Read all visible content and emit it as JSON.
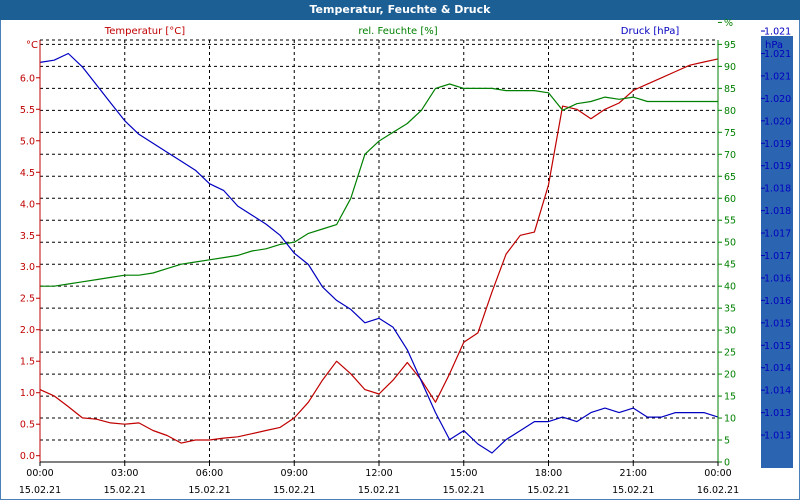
{
  "title": "Temperatur, Feuchte & Druck",
  "chart_data": {
    "type": "line",
    "title": "Temperatur, Feuchte & Druck",
    "legend": {
      "temperature": "Temperatur [°C]",
      "humidity": "rel. Feuchte [%]",
      "pressure": "Druck [hPa]"
    },
    "colors": {
      "temperature": "#c00000",
      "humidity": "#008000",
      "pressure": "#0000c0",
      "grid": "#000000"
    },
    "axes": {
      "left": {
        "unit": "°C",
        "ylim": [
          -0.1,
          6.6
        ],
        "ticks": [
          "0.0",
          "0.5",
          "1.0",
          "1.5",
          "2.0",
          "2.5",
          "3.0",
          "3.5",
          "4.0",
          "4.5",
          "5.0",
          "5.5",
          "6.0"
        ]
      },
      "right": {
        "unit": "%",
        "ylim": [
          0,
          96
        ],
        "ticks": [
          "0",
          "5",
          "10",
          "15",
          "20",
          "25",
          "30",
          "35",
          "40",
          "45",
          "50",
          "55",
          "60",
          "65",
          "70",
          "75",
          "80",
          "85",
          "90",
          "95",
          "%"
        ]
      },
      "pressure": {
        "unit": "hPa",
        "ylim": [
          1012.4,
          1021.8
        ],
        "ticks": [
          "1.013",
          "1.013",
          "1.014",
          "1.014",
          "1.015",
          "1.015",
          "1.016",
          "1.016",
          "1.017",
          "1.017",
          "1.018",
          "1.018",
          "1.019",
          "1.019",
          "1.020",
          "1.020",
          "1.021",
          "1.021",
          "1.021"
        ]
      },
      "x": {
        "time_ticks": [
          "00:00",
          "03:00",
          "06:00",
          "09:00",
          "12:00",
          "15:00",
          "18:00",
          "21:00",
          "00:00"
        ],
        "date_ticks": [
          "15.02.21",
          "15.02.21",
          "15.02.21",
          "15.02.21",
          "15.02.21",
          "15.02.21",
          "15.02.21",
          "15.02.21",
          "16.02.21"
        ],
        "xlim": [
          0,
          24
        ]
      }
    },
    "series": [
      {
        "key": "temperature",
        "name": "Temperatur [°C]",
        "x": [
          0,
          0.5,
          1,
          1.5,
          2,
          2.5,
          3,
          3.5,
          4,
          4.5,
          5,
          5.5,
          6,
          6.5,
          7,
          7.5,
          8,
          8.5,
          9,
          9.5,
          10,
          10.5,
          11,
          11.5,
          12,
          12.5,
          13,
          13.5,
          14,
          14.5,
          15,
          15.5,
          16,
          16.5,
          17,
          17.5,
          18,
          18.5,
          19,
          19.5,
          20,
          20.5,
          21,
          21.5,
          22,
          22.5,
          23,
          23.5,
          24
        ],
        "values": [
          1.05,
          0.95,
          0.78,
          0.6,
          0.58,
          0.52,
          0.5,
          0.52,
          0.4,
          0.32,
          0.2,
          0.25,
          0.25,
          0.28,
          0.3,
          0.35,
          0.4,
          0.45,
          0.6,
          0.85,
          1.2,
          1.5,
          1.3,
          1.05,
          0.98,
          1.2,
          1.48,
          1.2,
          0.85,
          1.3,
          1.8,
          1.95,
          2.6,
          3.2,
          3.5,
          3.55,
          4.3,
          5.55,
          5.5,
          5.35,
          5.5,
          5.6,
          5.8,
          5.9,
          6.0,
          6.1,
          6.2,
          6.25,
          6.3
        ]
      },
      {
        "key": "humidity",
        "name": "rel. Feuchte [%]",
        "x": [
          0,
          0.5,
          1,
          1.5,
          2,
          2.5,
          3,
          3.5,
          4,
          4.5,
          5,
          5.5,
          6,
          6.5,
          7,
          7.5,
          8,
          8.5,
          9,
          9.5,
          10,
          10.5,
          11,
          11.5,
          12,
          12.5,
          13,
          13.5,
          14,
          14.5,
          15,
          15.5,
          16,
          16.5,
          17,
          17.5,
          18,
          18.5,
          19,
          19.5,
          20,
          20.5,
          21,
          21.5,
          22,
          22.5,
          23,
          23.5,
          24
        ],
        "values": [
          40,
          40,
          40.5,
          41,
          41.5,
          42,
          42.5,
          42.5,
          43,
          44,
          45,
          45.5,
          46,
          46.5,
          47,
          48,
          48.5,
          49.5,
          50,
          52,
          53,
          54,
          60,
          70,
          73,
          75,
          77,
          80,
          85,
          86,
          85,
          85,
          85,
          84.5,
          84.5,
          84.5,
          84,
          80,
          81.5,
          82,
          83,
          82.5,
          83,
          82,
          82,
          82,
          82,
          82,
          82
        ]
      },
      {
        "key": "pressure",
        "name": "Druck [hPa]",
        "x": [
          0,
          0.5,
          1,
          1.5,
          2,
          2.5,
          3,
          3.5,
          4,
          4.5,
          5,
          5.5,
          6,
          6.5,
          7,
          7.5,
          8,
          8.5,
          9,
          9.5,
          10,
          10.5,
          11,
          11.5,
          12,
          12.5,
          13,
          13.5,
          14,
          14.5,
          15,
          15.5,
          16,
          16.5,
          17,
          17.5,
          18,
          18.5,
          19,
          19.5,
          20,
          20.5,
          21,
          21.5,
          22,
          22.5,
          23,
          23.5,
          24
        ],
        "values": [
          1021.3,
          1021.35,
          1021.5,
          1021.2,
          1020.8,
          1020.4,
          1020,
          1019.7,
          1019.5,
          1019.3,
          1019.1,
          1018.9,
          1018.6,
          1018.45,
          1018.1,
          1017.9,
          1017.7,
          1017.45,
          1017.05,
          1016.8,
          1016.3,
          1016.0,
          1015.8,
          1015.5,
          1015.6,
          1015.4,
          1014.9,
          1014.2,
          1013.5,
          1012.9,
          1013.1,
          1012.8,
          1012.6,
          1012.9,
          1013.1,
          1013.3,
          1013.3,
          1013.4,
          1013.3,
          1013.5,
          1013.6,
          1013.5,
          1013.6,
          1013.4,
          1013.4,
          1013.5,
          1013.5,
          1013.5,
          1013.4
        ]
      }
    ]
  }
}
